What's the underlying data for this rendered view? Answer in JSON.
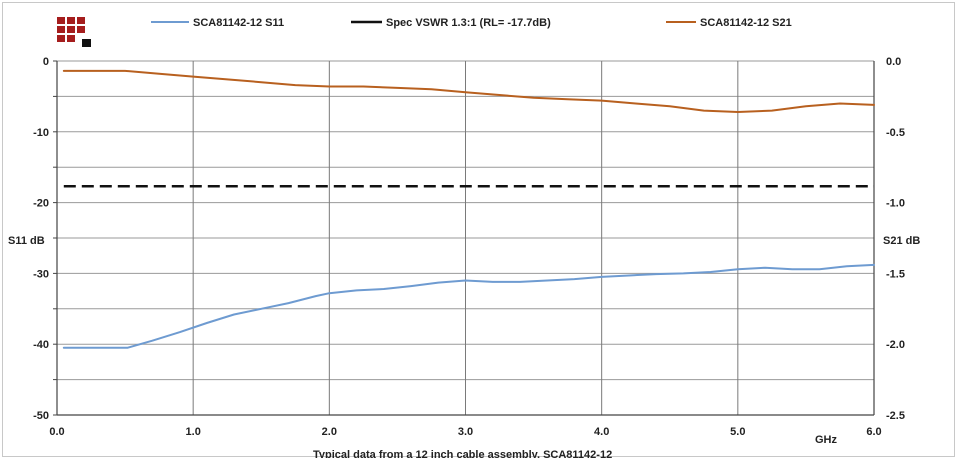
{
  "chart_data": {
    "type": "line",
    "title": "",
    "caption": "Typical data from a  12 inch cable assembly, SCA81142-12",
    "xlabel": "GHz",
    "ylabel_left": "S11 dB",
    "ylabel_right": "S21 dB",
    "xlim": [
      0.0,
      6.0
    ],
    "ylim_left": [
      -50,
      0
    ],
    "ylim_right": [
      -2.5,
      0.0
    ],
    "x_ticks": [
      "0.0",
      "1.0",
      "2.0",
      "3.0",
      "4.0",
      "5.0",
      "6.0"
    ],
    "y_left_ticks": [
      "0",
      "-10",
      "-20",
      "-30",
      "-40",
      "-50"
    ],
    "y_right_ticks": [
      "0.0",
      "-0.5",
      "-1.0",
      "-1.5",
      "-2.0",
      "-2.5"
    ],
    "grid": true,
    "legend_position": "top",
    "series": [
      {
        "name": "SCA81142-12 S11",
        "axis": "left",
        "color": "#6e9bd1",
        "points": [
          [
            0.05,
            -40.5
          ],
          [
            0.2,
            -40.5
          ],
          [
            0.4,
            -40.5
          ],
          [
            0.52,
            -40.5
          ],
          [
            0.7,
            -39.5
          ],
          [
            0.9,
            -38.3
          ],
          [
            1.1,
            -37.0
          ],
          [
            1.3,
            -35.8
          ],
          [
            1.5,
            -35.0
          ],
          [
            1.7,
            -34.2
          ],
          [
            1.9,
            -33.2
          ],
          [
            2.0,
            -32.8
          ],
          [
            2.2,
            -32.4
          ],
          [
            2.4,
            -32.2
          ],
          [
            2.6,
            -31.8
          ],
          [
            2.8,
            -31.3
          ],
          [
            3.0,
            -31.0
          ],
          [
            3.2,
            -31.2
          ],
          [
            3.4,
            -31.2
          ],
          [
            3.6,
            -31.0
          ],
          [
            3.8,
            -30.8
          ],
          [
            4.0,
            -30.5
          ],
          [
            4.2,
            -30.3
          ],
          [
            4.4,
            -30.1
          ],
          [
            4.6,
            -30.0
          ],
          [
            4.8,
            -29.8
          ],
          [
            5.0,
            -29.4
          ],
          [
            5.2,
            -29.2
          ],
          [
            5.4,
            -29.4
          ],
          [
            5.6,
            -29.4
          ],
          [
            5.8,
            -29.0
          ],
          [
            6.0,
            -28.8
          ]
        ]
      },
      {
        "name": "Spec VSWR 1.3:1 (RL= -17.7dB)",
        "axis": "left",
        "color": "#111111",
        "dashed": true,
        "points": [
          [
            0.05,
            -17.7
          ],
          [
            6.0,
            -17.7
          ]
        ]
      },
      {
        "name": "SCA81142-12 S21",
        "axis": "right",
        "color": "#b8601f",
        "points": [
          [
            0.05,
            -0.07
          ],
          [
            0.25,
            -0.07
          ],
          [
            0.5,
            -0.07
          ],
          [
            0.75,
            -0.09
          ],
          [
            1.0,
            -0.11
          ],
          [
            1.25,
            -0.13
          ],
          [
            1.5,
            -0.15
          ],
          [
            1.75,
            -0.17
          ],
          [
            2.0,
            -0.18
          ],
          [
            2.25,
            -0.18
          ],
          [
            2.5,
            -0.19
          ],
          [
            2.75,
            -0.2
          ],
          [
            3.0,
            -0.22
          ],
          [
            3.25,
            -0.24
          ],
          [
            3.5,
            -0.26
          ],
          [
            3.75,
            -0.27
          ],
          [
            4.0,
            -0.28
          ],
          [
            4.25,
            -0.3
          ],
          [
            4.5,
            -0.32
          ],
          [
            4.75,
            -0.35
          ],
          [
            5.0,
            -0.36
          ],
          [
            5.25,
            -0.35
          ],
          [
            5.5,
            -0.32
          ],
          [
            5.75,
            -0.3
          ],
          [
            6.0,
            -0.31
          ]
        ]
      }
    ]
  },
  "logo": {
    "name": "company-logo",
    "colors": [
      "#a51d1d",
      "#111111"
    ]
  }
}
